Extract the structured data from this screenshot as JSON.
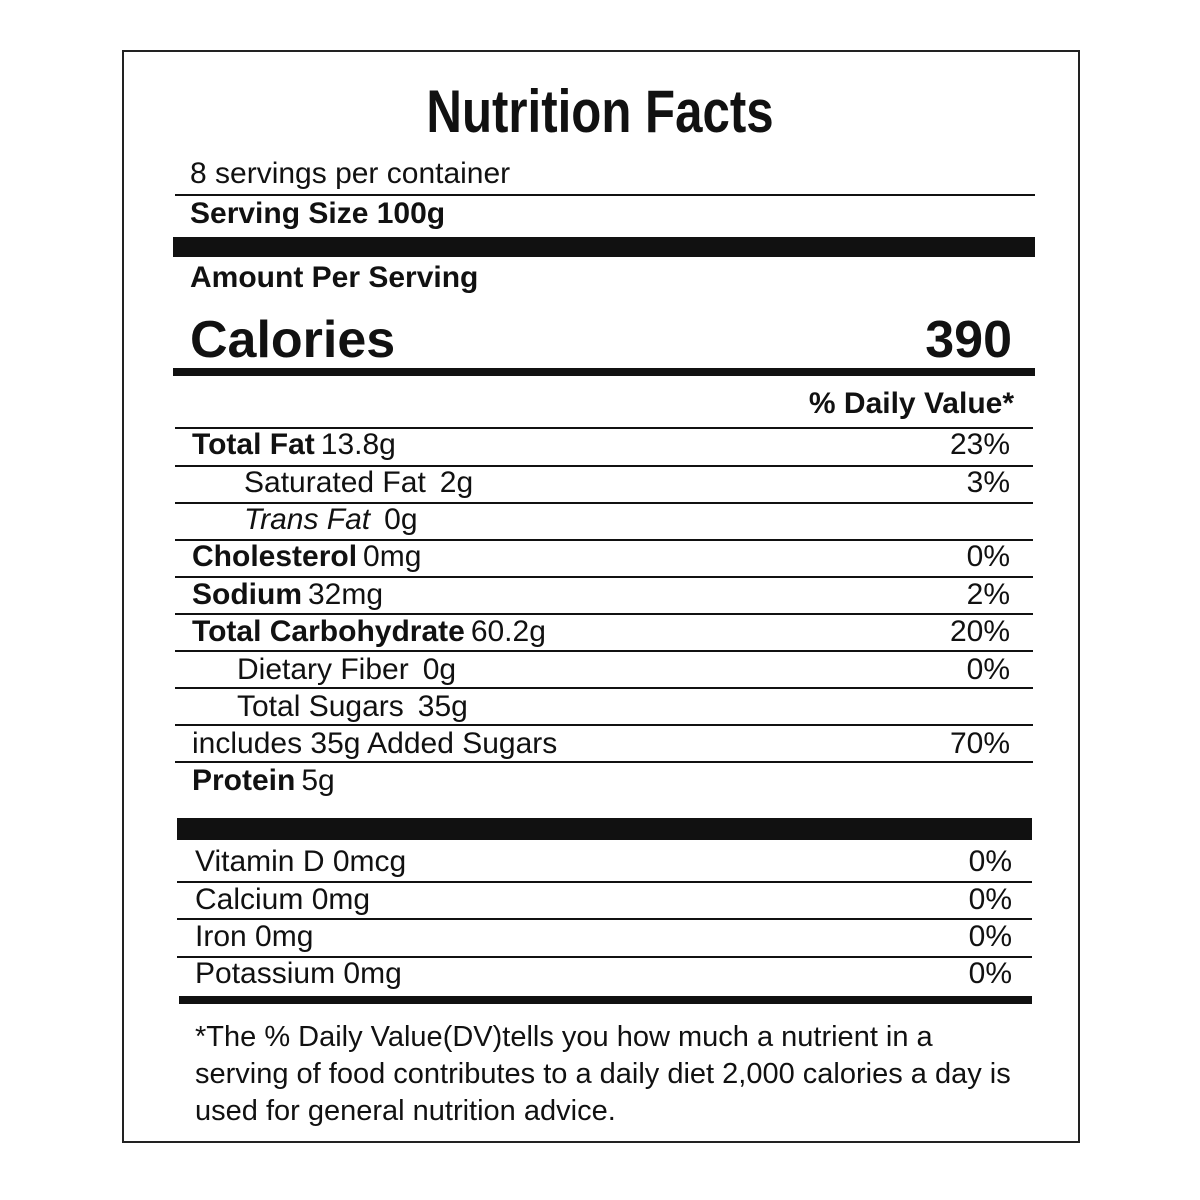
{
  "title": "Nutrition Facts",
  "servings_per_container": "8 servings per container",
  "serving_size": "Serving Size 100g",
  "amount_per_serving": "Amount Per Serving",
  "calories_label": "Calories",
  "calories_value": "390",
  "daily_value_header": "% Daily Value*",
  "nutrients": [
    {
      "name": "Total Fat",
      "amount": "13.8g",
      "dv": "23%",
      "style": "bold",
      "indent": 0
    },
    {
      "name": "Saturated Fat",
      "amount": "2g",
      "dv": "3%",
      "style": "normal",
      "indent": 1
    },
    {
      "name": "Trans Fat",
      "amount": "0g",
      "dv": "",
      "style": "italic",
      "indent": 1
    },
    {
      "name": "Cholesterol",
      "amount": "0mg",
      "dv": "0%",
      "style": "bold",
      "indent": 0
    },
    {
      "name": "Sodium",
      "amount": "32mg",
      "dv": "2%",
      "style": "bold",
      "indent": 0
    },
    {
      "name": "Total Carbohydrate",
      "amount": "60.2g",
      "dv": "20%",
      "style": "bold",
      "indent": 0
    },
    {
      "name": "Dietary Fiber",
      "amount": "0g",
      "dv": "0%",
      "style": "normal",
      "indent": 1
    },
    {
      "name": "Total Sugars",
      "amount": "35g",
      "dv": "",
      "style": "normal",
      "indent": 1
    },
    {
      "name": "includes 35g Added Sugars",
      "amount": "",
      "dv": "70%",
      "style": "normal",
      "indent": 0
    },
    {
      "name": "Protein",
      "amount": "5g",
      "dv": "",
      "style": "bold",
      "indent": 0
    }
  ],
  "vitamins": [
    {
      "name": "Vitamin D 0mcg",
      "dv": "0%"
    },
    {
      "name": "Calcium 0mg",
      "dv": "0%"
    },
    {
      "name": "Iron 0mg",
      "dv": "0%"
    },
    {
      "name": "Potassium 0mg",
      "dv": "0%"
    }
  ],
  "footnote": "*The % Daily Value(DV)tells you how much a nutrient in a serving of food contributes to a daily diet 2,000 calories a day is used for general nutrition advice."
}
